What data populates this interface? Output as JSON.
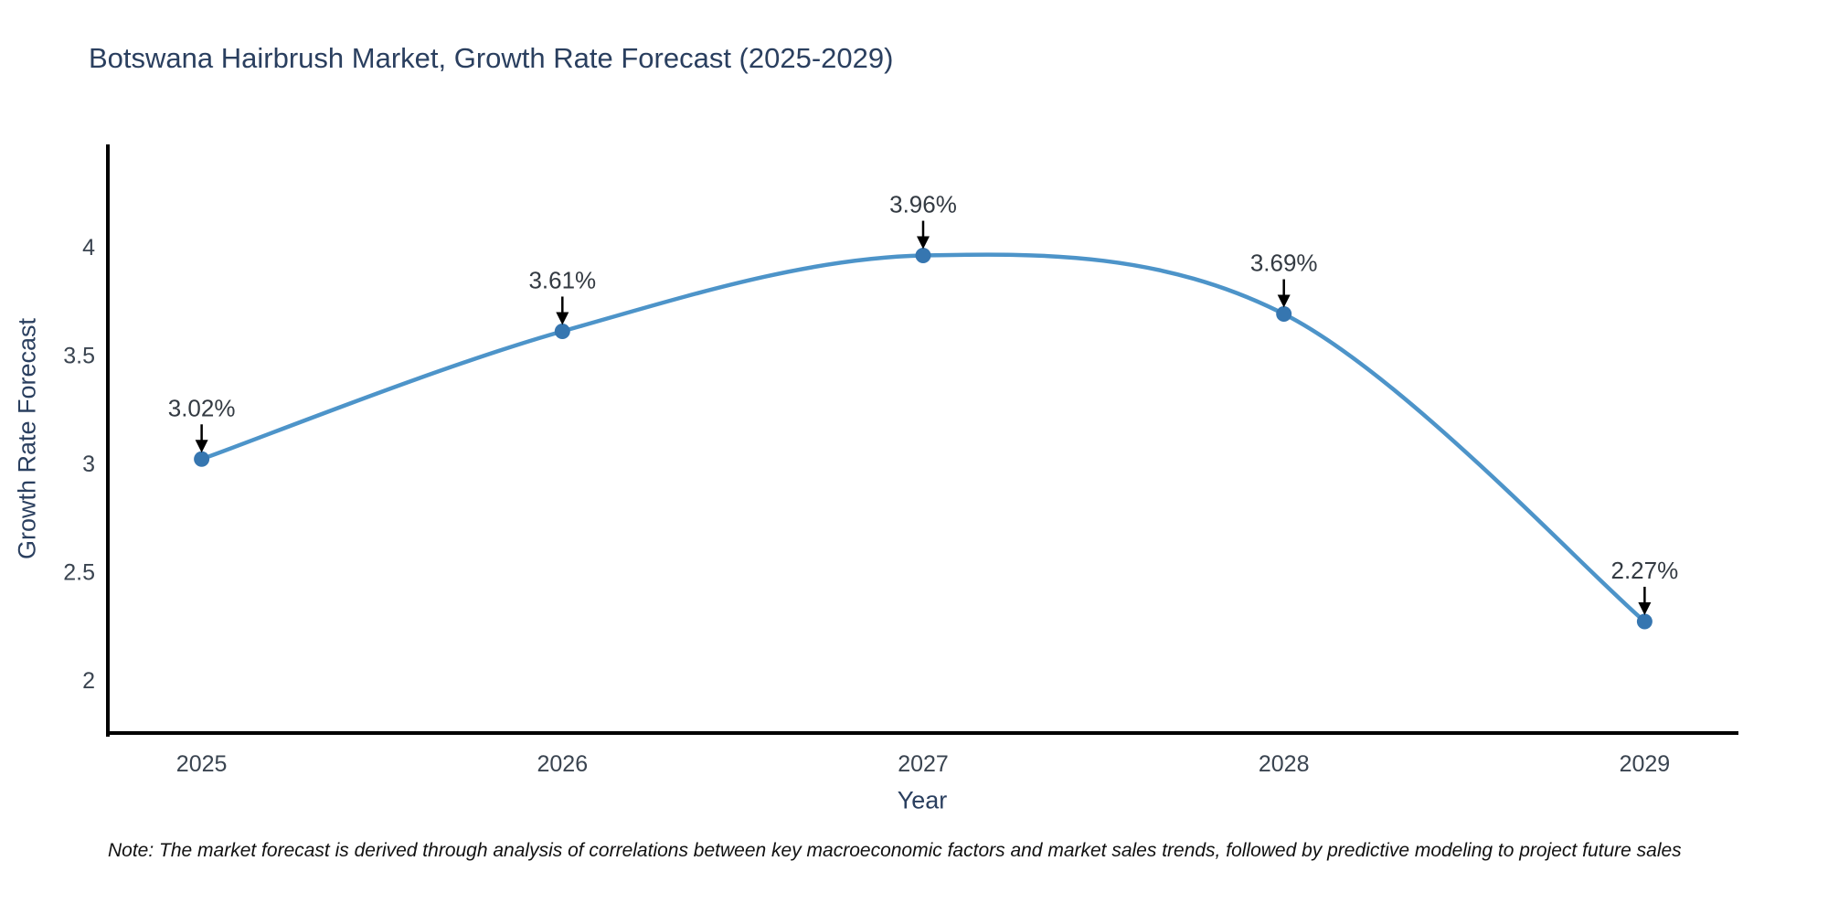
{
  "title": "Botswana Hairbrush Market, Growth Rate Forecast (2025-2029)",
  "note": "Note: The market forecast is derived through analysis of correlations between key macroeconomic factors and market sales trends, followed by predictive modeling to project future sales",
  "chart_data": {
    "type": "line",
    "title": "Botswana Hairbrush Market, Growth Rate Forecast (2025-2029)",
    "xlabel": "Year",
    "ylabel": "Growth Rate Forecast",
    "x": [
      2025,
      2026,
      2027,
      2028,
      2029
    ],
    "categories": [
      "2025",
      "2026",
      "2027",
      "2028",
      "2029"
    ],
    "values": [
      3.02,
      3.61,
      3.96,
      3.69,
      2.27
    ],
    "point_labels": [
      "3.02%",
      "3.61%",
      "3.96%",
      "3.69%",
      "2.27%"
    ],
    "yticks": [
      4,
      3.5,
      3,
      2.5,
      2
    ],
    "ytick_labels": [
      "4",
      "3.5",
      "3",
      "2.5",
      "2"
    ],
    "xlim": [
      2024.74,
      2029.26
    ],
    "ylim": [
      1.755,
      4.473
    ],
    "grid": false,
    "legend": "none",
    "smooth_line": true,
    "annotation_arrows": true
  },
  "colors": {
    "background": "#ffffff",
    "line": "#4d94c9",
    "marker": "#3676b0",
    "axis": "#000000",
    "tick_text": "#3a4450",
    "axis_title_text": "#2a3f5f",
    "title_text": "#2a3f5f",
    "annotation_text": "#333a42",
    "arrow": "#000000",
    "note_text": "#111111"
  }
}
